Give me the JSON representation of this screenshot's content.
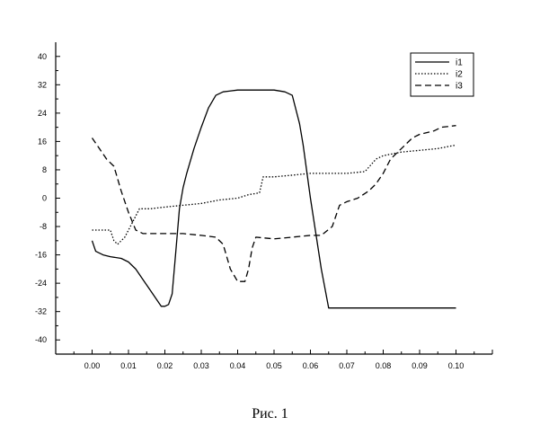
{
  "caption": "Рис. 1",
  "chart_data": {
    "type": "line",
    "xlim": [
      -0.01,
      0.11
    ],
    "ylim": [
      -44,
      44
    ],
    "x_ticks": [
      0.0,
      0.01,
      0.02,
      0.03,
      0.04,
      0.05,
      0.06,
      0.07,
      0.08,
      0.09,
      0.1
    ],
    "x_tick_labels": [
      "0.00",
      "0.01",
      "0.02",
      "0.03",
      "0.04",
      "0.05",
      "0.06",
      "0.07",
      "0.08",
      "0.09",
      "0.10"
    ],
    "y_ticks": [
      40,
      32,
      24,
      16,
      8,
      0,
      -8,
      -16,
      -24,
      -32,
      -40
    ],
    "y_tick_labels": [
      "40",
      "32",
      "24",
      "16",
      "8",
      "0",
      "-8",
      "-16",
      "-24",
      "-32",
      "-40"
    ],
    "grid": false,
    "legend_position": "top-right",
    "series": [
      {
        "name": "i1",
        "style": "solid",
        "x": [
          0.0,
          0.001,
          0.003,
          0.005,
          0.008,
          0.01,
          0.012,
          0.014,
          0.016,
          0.018,
          0.019,
          0.02,
          0.021,
          0.022,
          0.023,
          0.024,
          0.025,
          0.026,
          0.028,
          0.03,
          0.032,
          0.034,
          0.036,
          0.04,
          0.045,
          0.05,
          0.053,
          0.055,
          0.057,
          0.058,
          0.06,
          0.063,
          0.065,
          0.07,
          0.08,
          0.09,
          0.1
        ],
        "y": [
          -12,
          -15,
          -16,
          -16.5,
          -17,
          -18,
          -20,
          -23,
          -26,
          -29,
          -30.5,
          -30.5,
          -30,
          -27,
          -15,
          -3,
          3,
          7,
          14,
          20,
          25.5,
          29,
          30,
          30.5,
          30.5,
          30.5,
          30,
          29,
          21,
          15,
          0,
          -20,
          -31,
          -31,
          -31,
          -31,
          -31
        ]
      },
      {
        "name": "i2",
        "style": "dotted",
        "x": [
          0.0,
          0.005,
          0.006,
          0.007,
          0.009,
          0.011,
          0.013,
          0.016,
          0.02,
          0.025,
          0.03,
          0.035,
          0.04,
          0.043,
          0.046,
          0.047,
          0.05,
          0.055,
          0.06,
          0.065,
          0.07,
          0.075,
          0.078,
          0.08,
          0.085,
          0.09,
          0.095,
          0.1
        ],
        "y": [
          -9,
          -9,
          -12,
          -13,
          -11,
          -7,
          -3,
          -3,
          -2.5,
          -2,
          -1.5,
          -0.5,
          0,
          1,
          1.5,
          6,
          6,
          6.5,
          7,
          7,
          7,
          7.5,
          11,
          12,
          13,
          13.5,
          14,
          15
        ]
      },
      {
        "name": "i3",
        "style": "dashed",
        "x": [
          0.0,
          0.002,
          0.004,
          0.006,
          0.008,
          0.01,
          0.012,
          0.014,
          0.016,
          0.02,
          0.025,
          0.03,
          0.034,
          0.036,
          0.038,
          0.04,
          0.042,
          0.043,
          0.044,
          0.045,
          0.05,
          0.055,
          0.06,
          0.063,
          0.066,
          0.068,
          0.07,
          0.073,
          0.076,
          0.078,
          0.08,
          0.082,
          0.084,
          0.086,
          0.088,
          0.09,
          0.094,
          0.096,
          0.1
        ],
        "y": [
          17,
          14,
          11,
          9,
          2,
          -4,
          -9,
          -10,
          -10,
          -10,
          -10,
          -10.5,
          -11,
          -13,
          -20,
          -23.5,
          -23.5,
          -20,
          -14,
          -11,
          -11.5,
          -11,
          -10.5,
          -10.5,
          -8,
          -2,
          -1,
          0,
          2,
          4,
          7,
          11,
          13,
          15,
          17,
          18,
          19,
          20,
          20.5
        ]
      }
    ]
  }
}
